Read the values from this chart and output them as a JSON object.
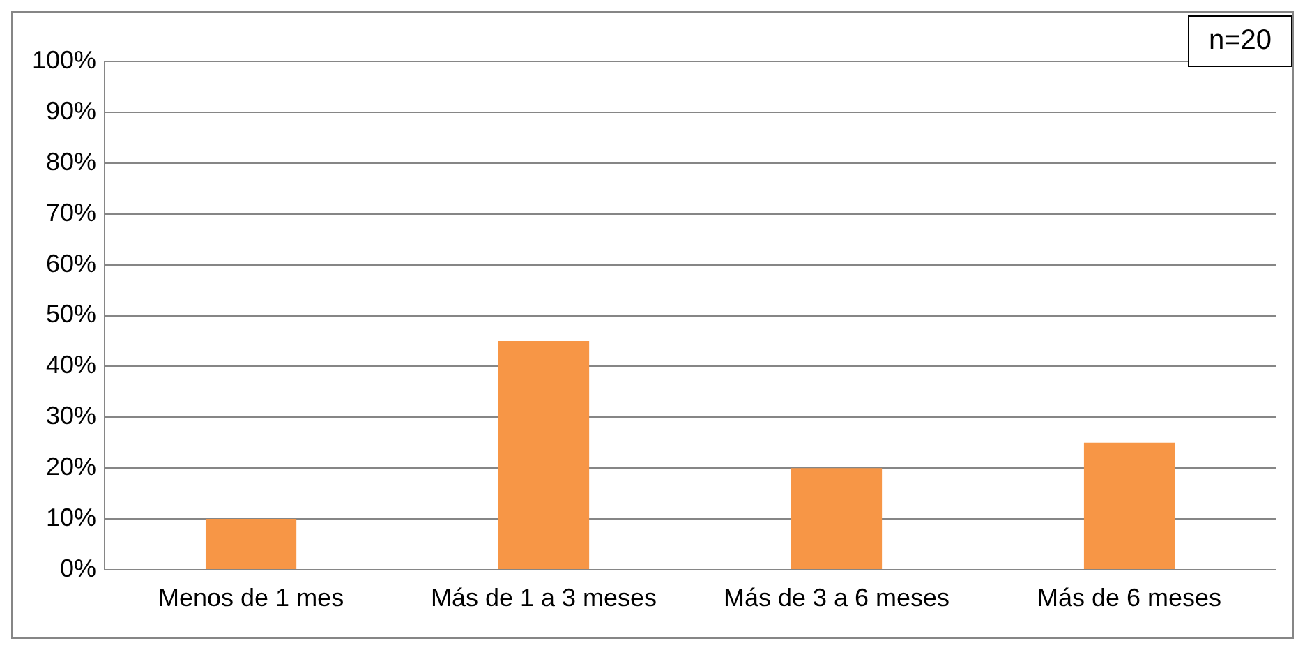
{
  "chart_data": {
    "type": "bar",
    "categories": [
      "Menos de 1 mes",
      "Más de 1 a 3 meses",
      "Más de 3 a 6 meses",
      "Más de 6 meses"
    ],
    "values": [
      10,
      45,
      20,
      25
    ],
    "color": "#f79646",
    "ylim": [
      0,
      100
    ],
    "yticks": [
      {
        "value": 0,
        "label": "0%"
      },
      {
        "value": 10,
        "label": "10%"
      },
      {
        "value": 20,
        "label": "20%"
      },
      {
        "value": 30,
        "label": "30%"
      },
      {
        "value": 40,
        "label": "40%"
      },
      {
        "value": 50,
        "label": "50%"
      },
      {
        "value": 60,
        "label": "60%"
      },
      {
        "value": 70,
        "label": "70%"
      },
      {
        "value": 80,
        "label": "80%"
      },
      {
        "value": 90,
        "label": "90%"
      },
      {
        "value": 100,
        "label": "100%"
      }
    ],
    "grid": "y",
    "legend": false,
    "annotations": [
      "n=20"
    ]
  }
}
